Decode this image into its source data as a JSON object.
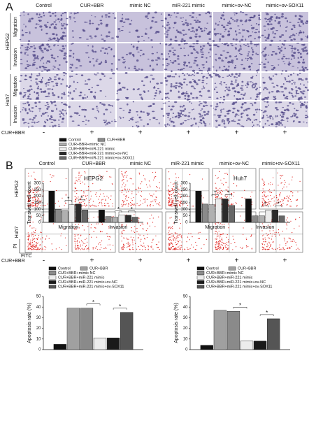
{
  "panel_a": {
    "label": "A",
    "columns": [
      "Control",
      "CUR+BBR",
      "mimic NC",
      "miR-221 mimic",
      "mimic+ov-NC",
      "mimic+ov-SOX11"
    ],
    "rows": [
      {
        "cell_line": "HEPG2",
        "assays": [
          "Migration",
          "Invasion"
        ]
      },
      {
        "cell_line": "Huh7",
        "assays": [
          "Migration",
          "Invasion"
        ]
      }
    ],
    "treatment_row": {
      "label": "CUR+BBR",
      "marks": [
        "-",
        "+",
        "+",
        "+",
        "+",
        "+"
      ]
    }
  },
  "panel_b": {
    "label": "B",
    "columns": [
      "Control",
      "CUR+BBR",
      "mimic NC",
      "miR-221 mimic",
      "mimic+ov-NC",
      "mimic+ov-SOX11"
    ],
    "rows": [
      "HEPG2",
      "Huh7"
    ],
    "y_label": "PI",
    "x_label": "FITC",
    "treatment_row": {
      "label": "CUR+BBR",
      "marks": [
        "-",
        "+",
        "+",
        "+",
        "+",
        "+"
      ]
    }
  },
  "chart_data": [
    {
      "type": "bar",
      "title": "HEPG2",
      "y_label": "Transwell cell count",
      "categories": [
        "Migration",
        "Invasion"
      ],
      "ylim": [
        0,
        300
      ],
      "yticks": [
        0,
        50,
        100,
        150,
        200,
        250,
        300
      ],
      "significance": [
        "*",
        "*",
        "*",
        "*"
      ],
      "series": [
        {
          "name": "Control",
          "color": "#111111",
          "values": [
            240,
            95
          ]
        },
        {
          "name": "CUR+BBR",
          "color": "#8a8a8a",
          "values": [
            100,
            45
          ]
        },
        {
          "name": "CUR+BBR+mimic NC",
          "color": "#b0b0b0",
          "values": [
            90,
            40
          ]
        },
        {
          "name": "CUR+BBR+miR-221 mimic",
          "color": "#ececec",
          "values": [
            135,
            55
          ]
        },
        {
          "name": "CUR+BBR+miR-221 mimic+ov-NC",
          "color": "#2a2a2a",
          "values": [
            140,
            55
          ]
        },
        {
          "name": "CUR+BBR+miR-221 mimic+ov-SOX11",
          "color": "#666666",
          "values": [
            95,
            40
          ]
        }
      ]
    },
    {
      "type": "bar",
      "title": "Huh7",
      "y_label": "Transwell cell count",
      "categories": [
        "Migration",
        "Invasion"
      ],
      "ylim": [
        0,
        300
      ],
      "yticks": [
        0,
        50,
        100,
        150,
        200,
        250,
        300
      ],
      "significance": [
        "*",
        "*",
        "*",
        "*"
      ],
      "series": [
        {
          "color": "#111111",
          "values": [
            240,
            180
          ]
        },
        {
          "color": "#8a8a8a",
          "values": [
            140,
            50
          ]
        },
        {
          "color": "#b0b0b0",
          "values": [
            135,
            50
          ]
        },
        {
          "color": "#ececec",
          "values": [
            180,
            95
          ]
        },
        {
          "color": "#2a2a2a",
          "values": [
            180,
            95
          ]
        },
        {
          "color": "#666666",
          "values": [
            130,
            50
          ]
        }
      ]
    },
    {
      "type": "bar",
      "y_label": "Apoptosis rate (%)",
      "categories": [
        null
      ],
      "ylim": [
        0,
        50
      ],
      "yticks": [
        0,
        10,
        20,
        30,
        40,
        50
      ],
      "significance": [
        "*",
        "*"
      ],
      "series": [
        {
          "name": "Control",
          "color": "#111111",
          "values": [
            5
          ]
        },
        {
          "name": "CUR+BBR",
          "color": "#a0a0a0",
          "values": [
            39
          ]
        },
        {
          "name": "CUR+BBR+mimic NC",
          "color": "#8a8a8a",
          "values": [
            39
          ]
        },
        {
          "name": "CUR+BBR+miR-221 mimic",
          "color": "#ececec",
          "values": [
            11
          ]
        },
        {
          "name": "CUR+BBR+miR-221 mimic+ov-NC",
          "color": "#1a1a1a",
          "values": [
            11
          ]
        },
        {
          "name": "CUR+BBR+miR-221 mimic+ov-SOX11",
          "color": "#555555",
          "values": [
            35
          ]
        }
      ]
    },
    {
      "type": "bar",
      "y_label": "Apoptosis rate (%)",
      "categories": [
        null
      ],
      "ylim": [
        0,
        50
      ],
      "yticks": [
        0,
        10,
        20,
        30,
        40,
        50
      ],
      "significance": [
        "*",
        "*"
      ],
      "series": [
        {
          "name": "Control",
          "color": "#111111",
          "values": [
            4
          ]
        },
        {
          "name": "CUR+BBR",
          "color": "#a0a0a0",
          "values": [
            37
          ]
        },
        {
          "name": "CUR+BBR+mimic NC",
          "color": "#8a8a8a",
          "values": [
            36
          ]
        },
        {
          "name": "CUR+BBR+miR-221 mimic",
          "color": "#ececec",
          "values": [
            8
          ]
        },
        {
          "name": "CUR+BBR+miR-221 mimic+ov-NC",
          "color": "#1a1a1a",
          "values": [
            8
          ]
        },
        {
          "name": "CUR+BBR+miR-221 mimic+ov-SOX11",
          "color": "#555555",
          "values": [
            29
          ]
        }
      ]
    }
  ]
}
